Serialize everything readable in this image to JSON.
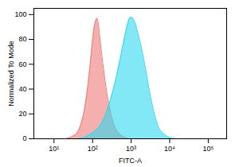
{
  "chart_data": {
    "type": "area",
    "x_label": "FITC-A",
    "y_label": "Normalized To Mode",
    "log": "x",
    "grid": false,
    "xlim": [
      3,
      300000
    ],
    "ylim": [
      0,
      105
    ],
    "xticks": [
      {
        "value": 10,
        "label": "10¹"
      },
      {
        "value": 100,
        "label": "10²"
      },
      {
        "value": 1000,
        "label": "10³"
      },
      {
        "value": 10000,
        "label": "10⁴"
      },
      {
        "value": 100000,
        "label": "10⁵"
      }
    ],
    "yticks": [
      0,
      20,
      40,
      60,
      80,
      100
    ],
    "series": [
      {
        "color": "#f07a7a",
        "x": [
          20,
          30,
          40,
          50,
          60,
          70,
          80,
          90,
          100,
          110,
          120,
          130,
          140,
          150,
          170,
          200,
          250,
          300,
          400,
          500,
          700,
          1000,
          1500
        ],
        "values": [
          0,
          2,
          5,
          12,
          22,
          35,
          50,
          65,
          80,
          90,
          95,
          97,
          93,
          85,
          70,
          52,
          32,
          20,
          8,
          4,
          1,
          0,
          0
        ]
      },
      {
        "color": "#2fd8ee",
        "x": [
          40,
          60,
          80,
          100,
          150,
          200,
          250,
          300,
          400,
          500,
          600,
          700,
          800,
          900,
          1000,
          1200,
          1500,
          2000,
          2500,
          3000,
          4000,
          5000,
          7000,
          10000,
          15000,
          20000
        ],
        "values": [
          0,
          1,
          3,
          5,
          10,
          17,
          25,
          33,
          48,
          62,
          74,
          84,
          92,
          97,
          98,
          95,
          85,
          68,
          52,
          38,
          20,
          10,
          4,
          1,
          0,
          0
        ]
      }
    ]
  }
}
